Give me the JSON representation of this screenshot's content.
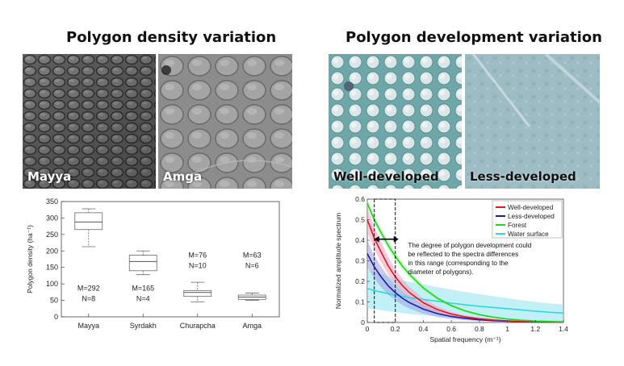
{
  "left_panel": {
    "title": "Polygon density variation",
    "photos": [
      {
        "label": "Mayya"
      },
      {
        "label": "Amga"
      }
    ]
  },
  "right_panel": {
    "title": "Polygon development variation",
    "photos": [
      {
        "label": "Well-developed"
      },
      {
        "label": "Less-developed"
      }
    ]
  },
  "chart_data": [
    {
      "type": "box",
      "title": "",
      "xlabel": "",
      "ylabel": "Polygon density (ha⁻¹)",
      "ylim": [
        0,
        350
      ],
      "yticks": [
        0,
        50,
        100,
        150,
        200,
        250,
        300,
        350
      ],
      "categories": [
        "Mayya",
        "Syrdakh",
        "Churapcha",
        "Amga"
      ],
      "boxes": [
        {
          "name": "Mayya",
          "min": 213,
          "q1": 265,
          "median": 288,
          "q3": 316,
          "max": 328
        },
        {
          "name": "Syrdakh",
          "min": 128,
          "q1": 140,
          "median": 168,
          "q3": 187,
          "max": 200
        },
        {
          "name": "Churapcha",
          "min": 45,
          "q1": 62,
          "median": 74,
          "q3": 80,
          "max": 105
        },
        {
          "name": "Amga",
          "min": 50,
          "q1": 53,
          "median": 60,
          "q3": 66,
          "max": 72
        }
      ],
      "annotations": [
        {
          "category": "Mayya",
          "m": "M=292",
          "n": "N=8",
          "pos": "low"
        },
        {
          "category": "Syrdakh",
          "m": "M=165",
          "n": "N=4",
          "pos": "low"
        },
        {
          "category": "Churapcha",
          "m": "M=76",
          "n": "N=10",
          "pos": "high"
        },
        {
          "category": "Amga",
          "m": "M=63",
          "n": "N=6",
          "pos": "high"
        }
      ]
    },
    {
      "type": "line",
      "title": "",
      "xlabel": "Spatial frequency (m⁻¹)",
      "ylabel": "Normalized amplitude spectrum",
      "xlim": [
        0,
        1.4
      ],
      "ylim": [
        0,
        0.6
      ],
      "xticks": [
        0,
        0.2,
        0.4,
        0.6,
        0.8,
        1,
        1.2,
        1.4
      ],
      "xtick_labels": [
        "0",
        "0.2",
        "0.4",
        "0.6",
        "0.8",
        "1",
        "1.2",
        "1.4"
      ],
      "yticks": [
        0,
        0.1,
        0.2,
        0.3,
        0.4,
        0.5,
        0.6
      ],
      "ytick_labels": [
        "0",
        "0.1",
        "0.2",
        "0.3",
        "0.4",
        "0.5",
        "0.6"
      ],
      "x": [
        0.0,
        0.05,
        0.1,
        0.15,
        0.2,
        0.25,
        0.3,
        0.4,
        0.5,
        0.6,
        0.7,
        0.8,
        0.9,
        1.0,
        1.1,
        1.2,
        1.3,
        1.4
      ],
      "series": [
        {
          "name": "Water surface",
          "color": "#2fd8e0",
          "band_color": "#8ee6f0",
          "values": [
            0.165,
            0.155,
            0.148,
            0.14,
            0.133,
            0.127,
            0.121,
            0.112,
            0.103,
            0.094,
            0.086,
            0.079,
            0.073,
            0.067,
            0.061,
            0.055,
            0.05,
            0.046
          ],
          "lower": [
            0.07,
            0.065,
            0.06,
            0.055,
            0.05,
            0.046,
            0.042,
            0.035,
            0.029,
            0.024,
            0.02,
            0.016,
            0.013,
            0.01,
            0.008,
            0.006,
            0.004,
            0.003
          ],
          "upper": [
            0.26,
            0.245,
            0.235,
            0.225,
            0.215,
            0.205,
            0.198,
            0.185,
            0.172,
            0.16,
            0.148,
            0.138,
            0.128,
            0.118,
            0.108,
            0.1,
            0.093,
            0.088
          ]
        },
        {
          "name": "Less-developed",
          "color": "#1c1ca8",
          "band_color": "#9e9ee0",
          "values": [
            0.335,
            0.27,
            0.22,
            0.178,
            0.145,
            0.118,
            0.097,
            0.065,
            0.043,
            0.029,
            0.02,
            0.013,
            0.009,
            0.006,
            0.004,
            0.003,
            0.002,
            0.001
          ],
          "lower": [
            0.27,
            0.215,
            0.17,
            0.135,
            0.108,
            0.085,
            0.068,
            0.043,
            0.027,
            0.017,
            0.011,
            0.007,
            0.004,
            0.003,
            0.002,
            0.001,
            0.001,
            0.0
          ],
          "upper": [
            0.4,
            0.325,
            0.27,
            0.222,
            0.182,
            0.15,
            0.126,
            0.087,
            0.059,
            0.041,
            0.029,
            0.019,
            0.013,
            0.009,
            0.006,
            0.004,
            0.003,
            0.002
          ]
        },
        {
          "name": "Well-developed",
          "color": "#e8141c",
          "band_color": "#f2a0c0",
          "values": [
            0.5,
            0.41,
            0.34,
            0.275,
            0.222,
            0.18,
            0.146,
            0.096,
            0.063,
            0.041,
            0.027,
            0.018,
            0.012,
            0.008,
            0.005,
            0.003,
            0.002,
            0.001
          ],
          "lower": [
            0.44,
            0.355,
            0.29,
            0.232,
            0.185,
            0.148,
            0.118,
            0.075,
            0.047,
            0.03,
            0.019,
            0.012,
            0.008,
            0.005,
            0.003,
            0.002,
            0.001,
            0.0
          ],
          "upper": [
            0.56,
            0.465,
            0.39,
            0.318,
            0.26,
            0.212,
            0.174,
            0.117,
            0.079,
            0.052,
            0.035,
            0.024,
            0.016,
            0.011,
            0.007,
            0.005,
            0.003,
            0.002
          ]
        },
        {
          "name": "Forest",
          "color": "#1ed61e",
          "band_color": "#a6eea6",
          "values": [
            0.58,
            0.5,
            0.435,
            0.375,
            0.322,
            0.275,
            0.235,
            0.168,
            0.118,
            0.082,
            0.056,
            0.038,
            0.026,
            0.017,
            0.011,
            0.007,
            0.005,
            0.003
          ],
          "lower": [
            0.56,
            0.48,
            0.415,
            0.355,
            0.303,
            0.258,
            0.219,
            0.155,
            0.107,
            0.074,
            0.05,
            0.033,
            0.022,
            0.014,
            0.009,
            0.006,
            0.004,
            0.002
          ],
          "upper": [
            0.6,
            0.52,
            0.455,
            0.395,
            0.341,
            0.292,
            0.251,
            0.181,
            0.129,
            0.09,
            0.062,
            0.043,
            0.03,
            0.02,
            0.013,
            0.008,
            0.006,
            0.004
          ]
        }
      ],
      "legend_order": [
        "Well-developed",
        "Less-developed",
        "Forest",
        "Water surface"
      ],
      "legend_position": "top-right",
      "highlight_range": [
        0.05,
        0.2
      ],
      "annotation": "The degree of polygon development could be reflected to the spectra differences in this range (corresponding to the diameter of polygons)."
    }
  ]
}
